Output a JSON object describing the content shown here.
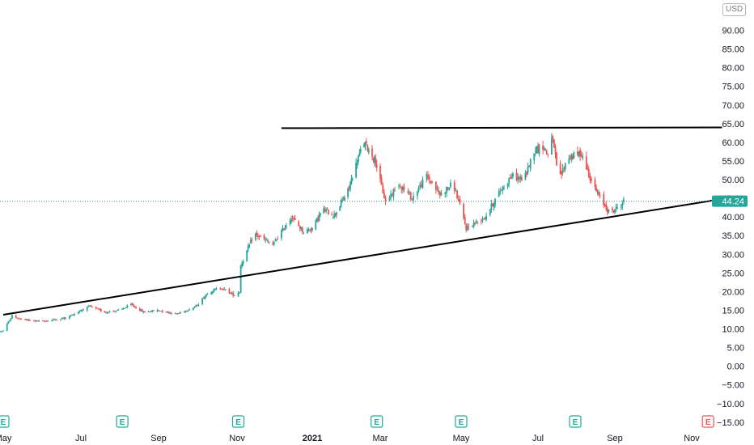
{
  "currency": "USD",
  "last_price": "44.24",
  "colors": {
    "up": "#26a69a",
    "down": "#ef5350",
    "trendline": "#000000",
    "price_line": "#26a69a",
    "earnings_past": "#26a69a",
    "earnings_future": "#ef5350"
  },
  "chart_data": {
    "type": "candlestick",
    "ylim": [
      -15,
      95
    ],
    "y_ticks": [
      "90.00",
      "85.00",
      "80.00",
      "75.00",
      "70.00",
      "65.00",
      "60.00",
      "55.00",
      "50.00",
      "45.00",
      "40.00",
      "35.00",
      "30.00",
      "25.00",
      "20.00",
      "15.00",
      "10.00",
      "5.00",
      "0.00",
      "−5.00",
      "−10.00",
      "−15.00"
    ],
    "y_tick_values": [
      90,
      85,
      80,
      75,
      70,
      65,
      60,
      55,
      50,
      45,
      40,
      35,
      30,
      25,
      20,
      15,
      10,
      5,
      0,
      -5,
      -10,
      -15
    ],
    "x_ticks": [
      {
        "label": "May",
        "date": "2020-05-01"
      },
      {
        "label": "Jul",
        "date": "2020-07-01"
      },
      {
        "label": "Sep",
        "date": "2020-09-01"
      },
      {
        "label": "Nov",
        "date": "2020-11-01"
      },
      {
        "label": "2021",
        "date": "2021-01-01",
        "bold": true
      },
      {
        "label": "Mar",
        "date": "2021-03-01"
      },
      {
        "label": "May",
        "date": "2021-05-01"
      },
      {
        "label": "Jul",
        "date": "2021-07-01"
      },
      {
        "label": "Sep",
        "date": "2021-09-01"
      },
      {
        "label": "Nov",
        "date": "2021-11-01"
      }
    ],
    "price_path": [
      [
        "2020-04-20",
        8.5
      ],
      [
        "2020-05-01",
        9.5
      ],
      [
        "2020-05-08",
        13.5
      ],
      [
        "2020-05-15",
        12.5
      ],
      [
        "2020-06-01",
        12.0
      ],
      [
        "2020-06-20",
        13.0
      ],
      [
        "2020-07-01",
        15.0
      ],
      [
        "2020-07-08",
        16.0
      ],
      [
        "2020-07-20",
        14.5
      ],
      [
        "2020-08-01",
        15.0
      ],
      [
        "2020-08-10",
        16.5
      ],
      [
        "2020-08-20",
        14.5
      ],
      [
        "2020-09-01",
        15.0
      ],
      [
        "2020-09-15",
        14.0
      ],
      [
        "2020-09-30",
        16.0
      ],
      [
        "2020-10-10",
        20.0
      ],
      [
        "2020-10-20",
        21.0
      ],
      [
        "2020-10-30",
        19.0
      ],
      [
        "2020-11-03",
        20.0
      ],
      [
        "2020-11-04",
        27.0
      ],
      [
        "2020-11-15",
        35.5
      ],
      [
        "2020-11-30",
        32.5
      ],
      [
        "2020-12-15",
        40.0
      ],
      [
        "2020-12-25",
        36.0
      ],
      [
        "2021-01-01",
        37.0
      ],
      [
        "2021-01-10",
        42.0
      ],
      [
        "2021-01-20",
        40.5
      ],
      [
        "2021-02-01",
        47.0
      ],
      [
        "2021-02-10",
        56.0
      ],
      [
        "2021-02-15",
        60.0
      ],
      [
        "2021-02-25",
        55.0
      ],
      [
        "2021-03-05",
        44.0
      ],
      [
        "2021-03-15",
        49.0
      ],
      [
        "2021-03-25",
        45.0
      ],
      [
        "2021-04-05",
        51.0
      ],
      [
        "2021-04-15",
        46.0
      ],
      [
        "2021-04-25",
        49.0
      ],
      [
        "2021-05-05",
        37.0
      ],
      [
        "2021-05-20",
        40.0
      ],
      [
        "2021-06-01",
        47.0
      ],
      [
        "2021-06-10",
        51.0
      ],
      [
        "2021-06-20",
        50.0
      ],
      [
        "2021-06-28",
        58.0
      ],
      [
        "2021-07-05",
        59.0
      ],
      [
        "2021-07-10",
        56.0
      ],
      [
        "2021-07-12",
        62.0
      ],
      [
        "2021-07-18",
        50.0
      ],
      [
        "2021-07-25",
        56.0
      ],
      [
        "2021-08-05",
        57.0
      ],
      [
        "2021-08-15",
        48.0
      ],
      [
        "2021-08-22",
        44.0
      ],
      [
        "2021-08-28",
        41.0
      ],
      [
        "2021-09-05",
        43.0
      ],
      [
        "2021-09-08",
        44.24
      ]
    ],
    "trendlines": [
      {
        "from": [
          "2020-05-01",
          13.8
        ],
        "to": [
          "2021-11-25",
          44.8
        ]
      },
      {
        "from": [
          "2020-12-07",
          63.8
        ],
        "to": [
          "2021-11-25",
          64.0
        ]
      }
    ],
    "earnings": [
      {
        "date": "2020-05-01",
        "label": "E",
        "future": false
      },
      {
        "date": "2020-08-03",
        "label": "E",
        "future": false
      },
      {
        "date": "2020-11-02",
        "label": "E",
        "future": false
      },
      {
        "date": "2021-02-26",
        "label": "E",
        "future": false
      },
      {
        "date": "2021-05-01",
        "label": "E",
        "future": false
      },
      {
        "date": "2021-07-31",
        "label": "E",
        "future": false
      },
      {
        "date": "2021-11-14",
        "label": "E",
        "future": true
      }
    ]
  }
}
